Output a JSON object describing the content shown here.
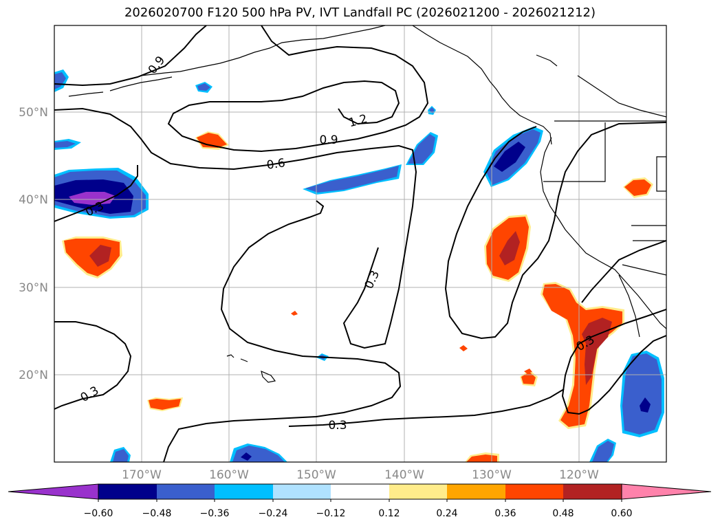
{
  "title": "2026020700 F120 500 hPa PV, IVT Landfall PC (2026021200 - 2026021212)",
  "map": {
    "lon_range": [
      -180,
      -110
    ],
    "lat_range": [
      10,
      60
    ],
    "gridlines": true,
    "lat_labels": [
      "20°N",
      "30°N",
      "40°N",
      "50°N"
    ],
    "lon_labels": [
      "170°W",
      "160°W",
      "150°W",
      "140°W",
      "130°W",
      "120°W"
    ],
    "contour_labels": [
      "0.9",
      "1.2",
      "0.9",
      "0.6",
      "0.3",
      "0.3",
      "0.3",
      "0.3",
      "0.3"
    ]
  },
  "colorbar": {
    "ticks": [
      "−0.60",
      "−0.48",
      "−0.36",
      "−0.24",
      "−0.12",
      "0.12",
      "0.24",
      "0.36",
      "0.48",
      "0.60"
    ],
    "colors": [
      "#9932cc",
      "#00008b",
      "#3a5fcd",
      "#00bfff",
      "#b0e2ff",
      "#ffffff",
      "#ffec8b",
      "#ffa500",
      "#ff4500",
      "#b22222",
      "#ff82ab"
    ],
    "extend": "both"
  },
  "colors": {
    "contour": "#000000",
    "grid": "#b0b0b0",
    "coast": "#000000"
  }
}
